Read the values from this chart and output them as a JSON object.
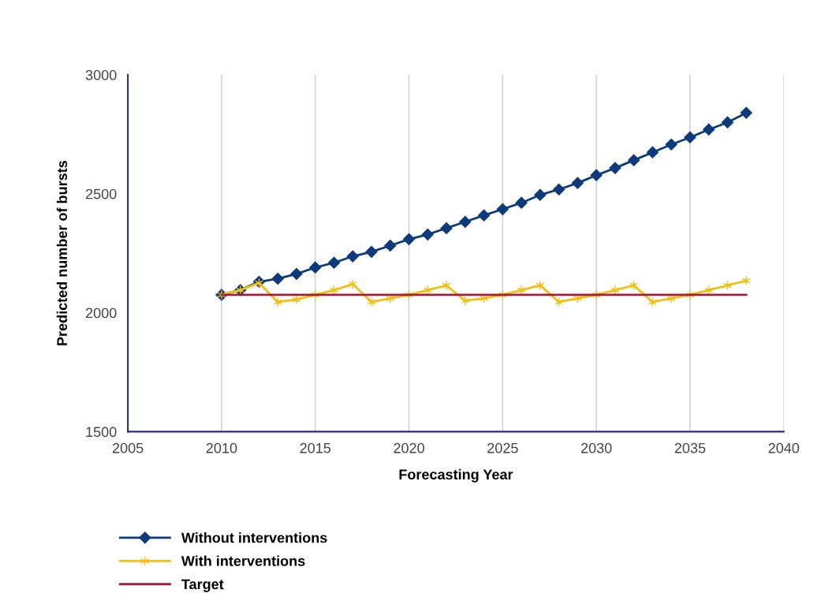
{
  "chart_data": {
    "type": "line",
    "xlabel": "Forecasting Year",
    "ylabel": "Predicted number of bursts",
    "x": [
      2010,
      2011,
      2012,
      2013,
      2014,
      2015,
      2016,
      2017,
      2018,
      2019,
      2020,
      2021,
      2022,
      2023,
      2024,
      2025,
      2026,
      2027,
      2028,
      2029,
      2030,
      2031,
      2032,
      2033,
      2034,
      2035,
      2036,
      2037,
      2038
    ],
    "series": [
      {
        "name": "Without interventions",
        "color": "#0d3a7a",
        "marker": "diamond",
        "values": [
          2075,
          2095,
          2130,
          2143,
          2163,
          2190,
          2210,
          2237,
          2256,
          2282,
          2309,
          2329,
          2355,
          2382,
          2409,
          2435,
          2462,
          2495,
          2518,
          2545,
          2578,
          2608,
          2641,
          2674,
          2707,
          2737,
          2770,
          2800,
          2840
        ]
      },
      {
        "name": "With interventions",
        "color": "#f2c014",
        "marker": "cross",
        "values": [
          2075,
          2095,
          2125,
          2045,
          2055,
          2075,
          2095,
          2120,
          2045,
          2060,
          2075,
          2095,
          2115,
          2050,
          2060,
          2075,
          2095,
          2115,
          2045,
          2060,
          2075,
          2095,
          2115,
          2045,
          2060,
          2075,
          2095,
          2115,
          2135
        ]
      },
      {
        "name": "Target",
        "color": "#a0203c",
        "marker": "none",
        "x": [
          2010,
          2038
        ],
        "values": [
          2075,
          2075
        ]
      }
    ],
    "xlim": [
      2005,
      2040
    ],
    "xticks": [
      2005,
      2010,
      2015,
      2020,
      2025,
      2030,
      2035,
      2040
    ],
    "ylim": [
      1500,
      3000
    ],
    "yticks": [
      1500,
      2000,
      2500,
      3000
    ],
    "grid": "x",
    "legend": "bottom left"
  }
}
